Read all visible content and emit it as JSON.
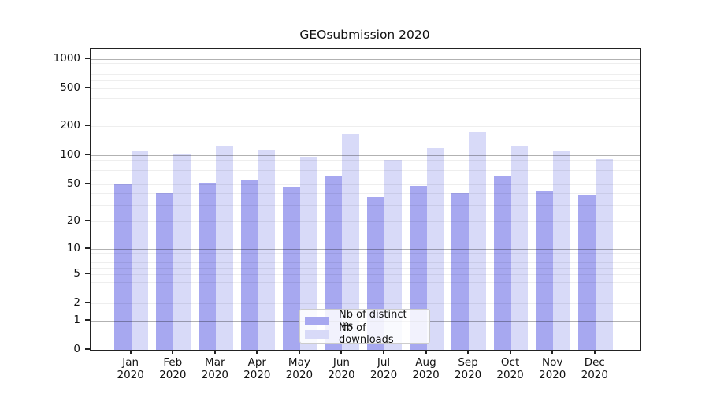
{
  "title": "GEOsubmission 2020",
  "legend": {
    "items": [
      {
        "label": "Nb of distinct IPs",
        "color": "#a7a8f0"
      },
      {
        "label": "Nb of downloads",
        "color": "#d8daf8"
      }
    ]
  },
  "chart_data": {
    "type": "bar",
    "title": "GEOsubmission 2020",
    "categories": [
      "Jan 2020",
      "Feb 2020",
      "Mar 2020",
      "Apr 2020",
      "May 2020",
      "Jun 2020",
      "Jul 2020",
      "Aug 2020",
      "Sep 2020",
      "Oct 2020",
      "Nov 2020",
      "Dec 2020"
    ],
    "x_tick_line1": [
      "Jan",
      "Feb",
      "Mar",
      "Apr",
      "May",
      "Jun",
      "Jul",
      "Aug",
      "Sep",
      "Oct",
      "Nov",
      "Dec"
    ],
    "x_tick_line2": "2020",
    "series": [
      {
        "name": "Nb of distinct IPs",
        "color": "#a7a8f0",
        "values": [
          51,
          40,
          52,
          56,
          47,
          61,
          37,
          48,
          40,
          61,
          42,
          38
        ]
      },
      {
        "name": "Nb of downloads",
        "color": "#d8daf8",
        "values": [
          112,
          102,
          127,
          115,
          97,
          166,
          89,
          120,
          174,
          126,
          112,
          92
        ]
      }
    ],
    "yscale": "log1p",
    "y_ticks": [
      0,
      1,
      2,
      5,
      10,
      20,
      50,
      100,
      200,
      500,
      1000
    ],
    "y_major_gridlines": [
      1,
      10,
      100,
      1000
    ],
    "y_minor_gridlines": [
      2,
      3,
      4,
      5,
      6,
      7,
      8,
      9,
      20,
      30,
      40,
      50,
      60,
      70,
      80,
      90,
      200,
      300,
      400,
      500,
      600,
      700,
      800,
      900
    ],
    "ylim": [
      0,
      1265
    ],
    "grid": "on",
    "legend_position": "lower center inside",
    "xlabel": "",
    "ylabel": ""
  },
  "colors": {
    "spine": "#222222",
    "text": "#111111",
    "major_grid": "#b3b3b3",
    "minor_grid": "#ececec"
  }
}
